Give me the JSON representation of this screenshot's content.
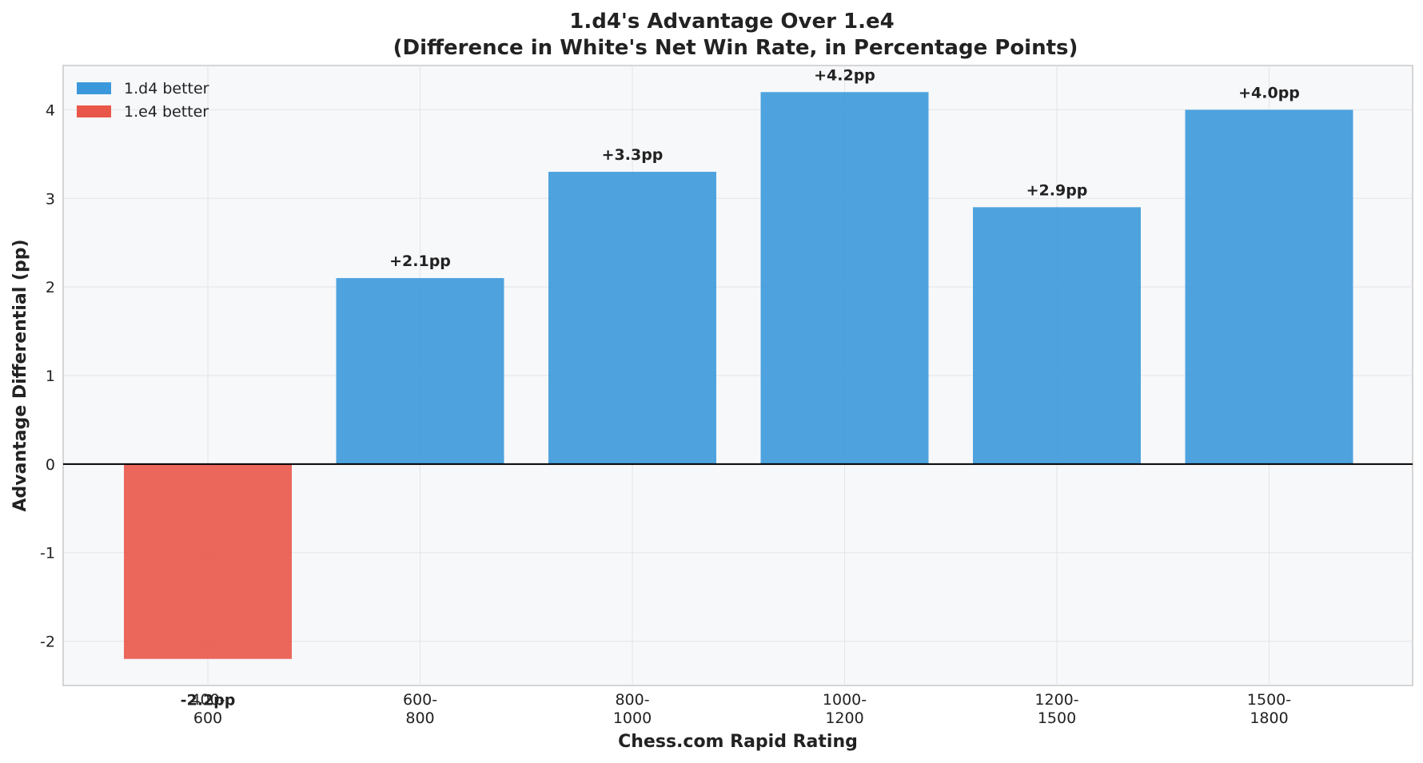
{
  "chart_data": {
    "type": "bar",
    "title": [
      "1.d4's Advantage Over 1.e4",
      "(Difference in White's Net Win Rate, in Percentage Points)"
    ],
    "xlabel": "Chess.com Rapid Rating",
    "ylabel": "Advantage Differential (pp)",
    "categories": [
      [
        "400-",
        "600"
      ],
      [
        "600-",
        "800"
      ],
      [
        "800-",
        "1000"
      ],
      [
        "1000-",
        "1200"
      ],
      [
        "1200-",
        "1500"
      ],
      [
        "1500-",
        "1800"
      ]
    ],
    "values": [
      -2.2,
      2.1,
      3.3,
      4.2,
      2.9,
      4.0
    ],
    "data_labels": [
      "-2.2pp",
      "+2.1pp",
      "+3.3pp",
      "+4.2pp",
      "+2.9pp",
      "+4.0pp"
    ],
    "ylim": [
      -2.5,
      4.5
    ],
    "yticks": [
      -2,
      -1,
      0,
      1,
      2,
      3,
      4
    ],
    "grid": true,
    "legend": {
      "placement": "top-left",
      "entries": [
        {
          "label": "1.d4 better",
          "color": "#3b99db"
        },
        {
          "label": "1.e4 better",
          "color": "#e9574a"
        }
      ]
    },
    "colors": {
      "positive": "#3b99db",
      "negative": "#e9574a",
      "plot_background": "#f7f8fa",
      "grid": "#e3e5e8",
      "zero_line": "#000000"
    }
  }
}
